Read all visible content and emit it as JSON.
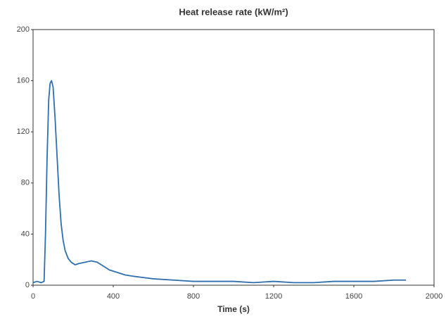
{
  "chart_data": {
    "type": "line",
    "title": "Heat release rate (kW/m²)",
    "x_label": "Time (s)",
    "x": [
      0,
      20,
      40,
      55,
      62,
      70,
      78,
      85,
      92,
      100,
      110,
      120,
      130,
      140,
      150,
      160,
      175,
      190,
      210,
      230,
      260,
      290,
      320,
      350,
      380,
      420,
      460,
      500,
      550,
      600,
      700,
      800,
      900,
      1000,
      1100,
      1200,
      1300,
      1400,
      1500,
      1600,
      1700,
      1800,
      1860
    ],
    "series": [
      {
        "color": "#2f6fae",
        "values": [
          2,
          3,
          2,
          3,
          40,
          100,
          145,
          158,
          160,
          155,
          130,
          100,
          70,
          48,
          35,
          27,
          21,
          18,
          16,
          17,
          18,
          19,
          18,
          15,
          12,
          10,
          8,
          7,
          6,
          5,
          4,
          3,
          3,
          3,
          2,
          3,
          2,
          2,
          3,
          3,
          3,
          4,
          4
        ]
      }
    ],
    "xlim": [
      0,
      2000
    ],
    "xticks": [
      0,
      400,
      800,
      1200,
      1600,
      2000
    ],
    "ylim": [
      0,
      200
    ],
    "yticks": [
      0,
      40,
      80,
      120,
      160,
      200
    ],
    "grid": false
  }
}
